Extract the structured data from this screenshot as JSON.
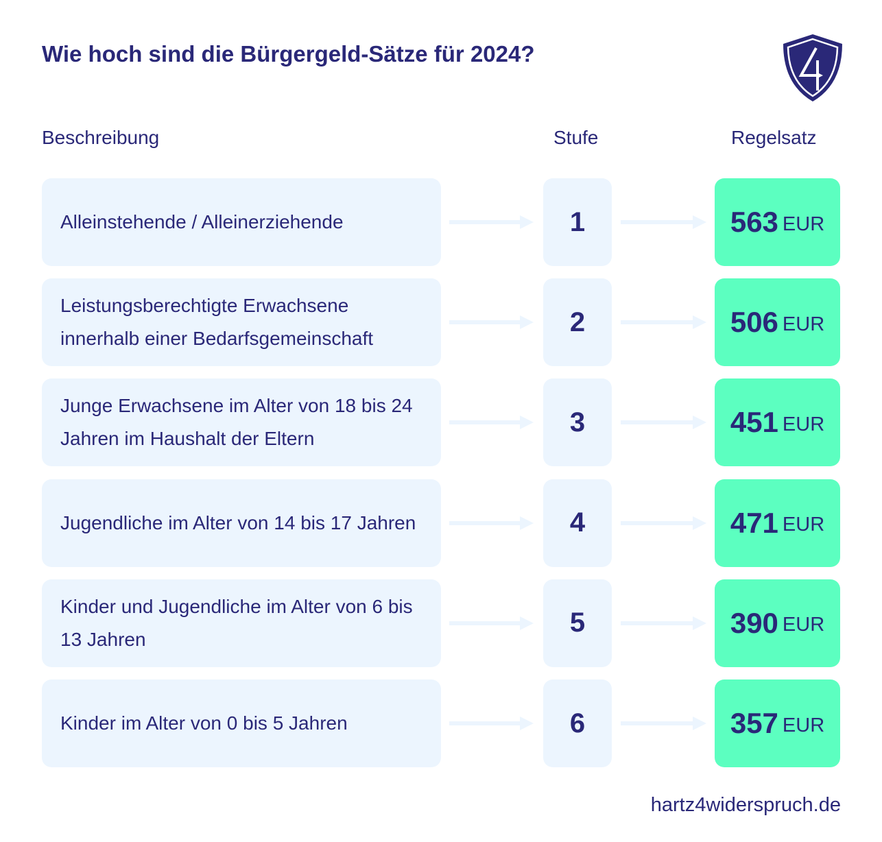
{
  "title": "Wie hoch sind die Bürgergeld-Sätze für 2024?",
  "headers": {
    "description": "Beschreibung",
    "level": "Stufe",
    "rate": "Regelsatz"
  },
  "rows": [
    {
      "description": "Alleinstehende / Alleinerziehende",
      "level": "1",
      "amount": "563",
      "currency": "EUR"
    },
    {
      "description": "Leistungsberechtigte Erwachsene innerhalb einer Bedarfsgemeinschaft",
      "level": "2",
      "amount": "506",
      "currency": "EUR"
    },
    {
      "description": "Junge Erwachsene im Alter von 18 bis 24 Jahren im Haushalt der Eltern",
      "level": "3",
      "amount": "451",
      "currency": "EUR"
    },
    {
      "description": "Jugendliche im Alter von 14 bis 17 Jahren",
      "level": "4",
      "amount": "471",
      "currency": "EUR"
    },
    {
      "description": "Kinder und Jugendliche im Alter von 6 bis 13 Jahren",
      "level": "5",
      "amount": "390",
      "currency": "EUR"
    },
    {
      "description": "Kinder im Alter von 0 bis 5 Jahren",
      "level": "6",
      "amount": "357",
      "currency": "EUR"
    }
  ],
  "footer": "hartz4widerspruch.de",
  "colors": {
    "text": "#2a2878",
    "box": "#ecf5fe",
    "highlight": "#5cffc0"
  },
  "logo_icon": "shield-4-arrow-icon"
}
